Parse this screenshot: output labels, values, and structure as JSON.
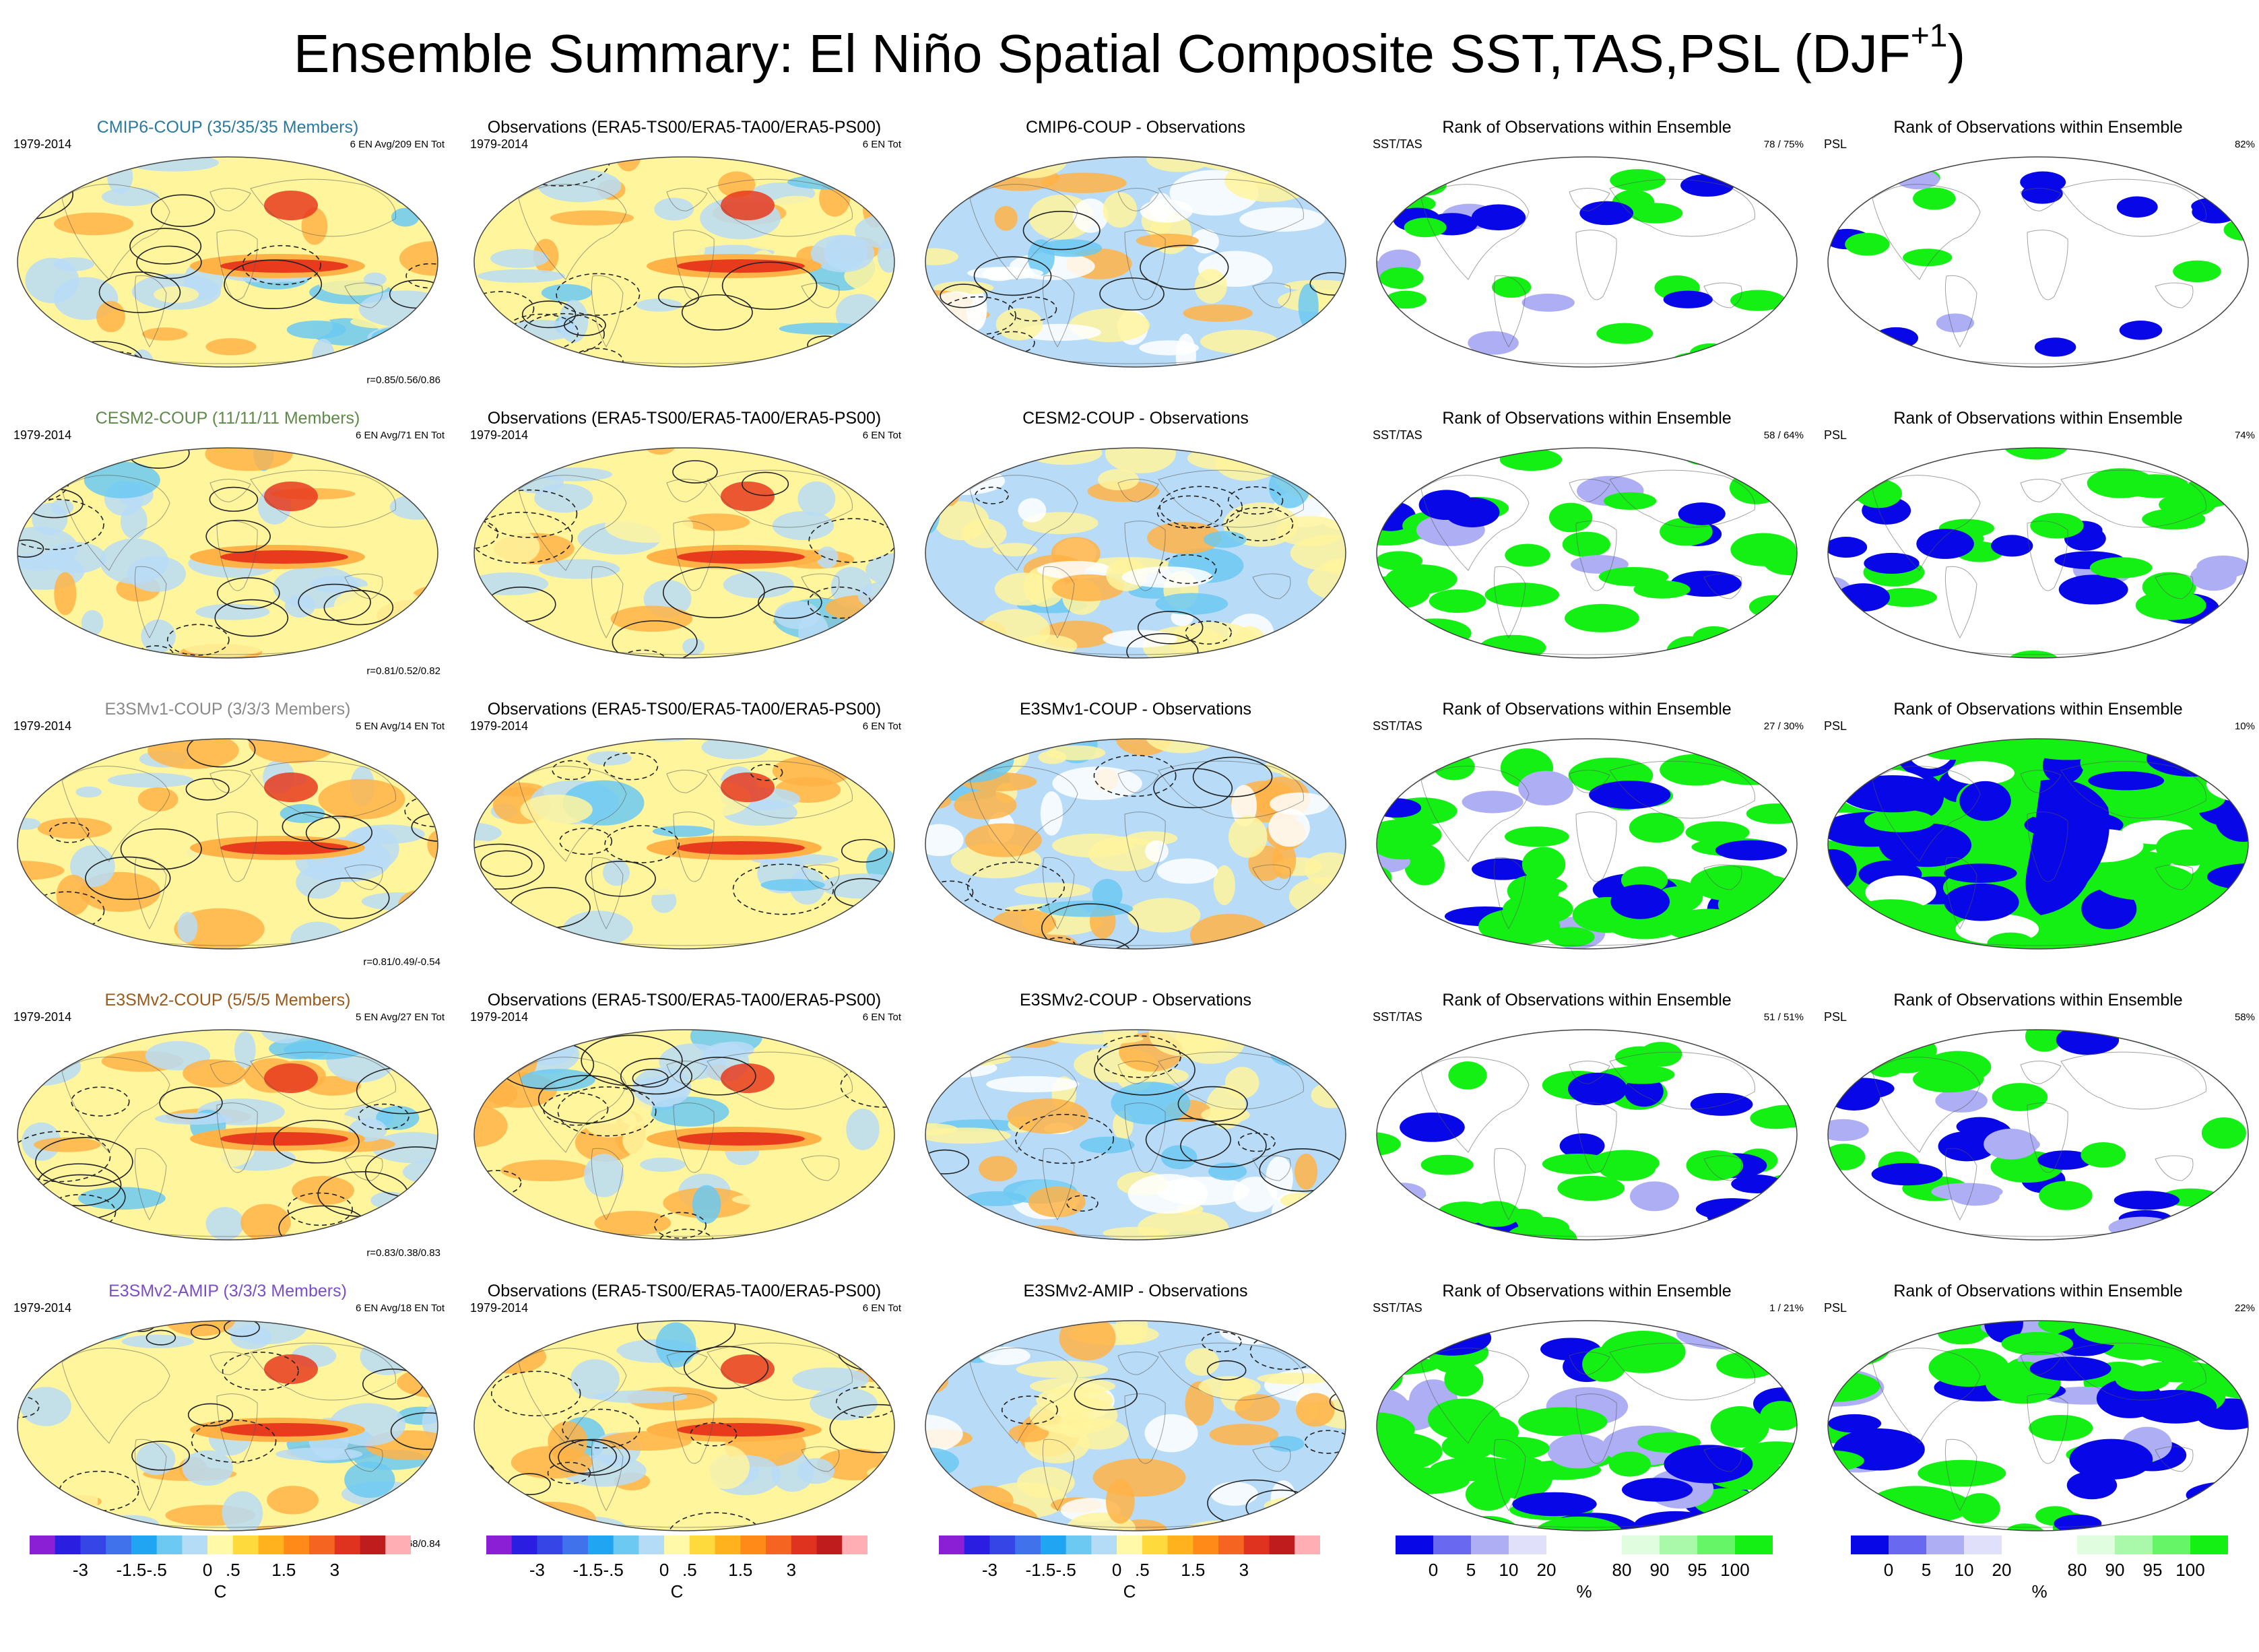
{
  "figure": {
    "title_main": "Ensemble Summary: El Niño Spatial Composite SST,TAS,PSL (DJF",
    "title_superscript": "+1",
    "title_end": ")"
  },
  "colors": {
    "sst_scale": [
      "#8b1fd6",
      "#2a1fe0",
      "#3545e6",
      "#3f72eb",
      "#1fa5f2",
      "#6cc9f2",
      "#b5dcf6",
      "#fff9a8",
      "#ffda3d",
      "#ffb21e",
      "#ff8a18",
      "#f56420",
      "#e0331f",
      "#bf1d1d",
      "#ffafb4"
    ],
    "rank_scale": [
      "#0707e8",
      "#6868f0",
      "#aeaef5",
      "#e0e0fa",
      "#ffffff",
      "#ffffff",
      "#e0fde0",
      "#aaf9aa",
      "#66f566",
      "#14f014"
    ],
    "ocean_blue": "#b8dcf7",
    "ocean_yellow": "#fff59d",
    "warm_orange": "#ffb347",
    "warm_red": "#e83b1e",
    "rank_green": "#14f014",
    "rank_blue": "#0707e8",
    "model_title_colors": {
      "cmip6": "#2a7aa0",
      "cesm2": "#5e8a4a",
      "e3smv1": "#8a8a8a",
      "e3smv2coup": "#9a5a1a",
      "e3smv2amip": "#7a4ec8"
    }
  },
  "rows": [
    {
      "model": {
        "title": "CMIP6-COUP (35/35/35 Members)",
        "period": "1979-2014",
        "stat": "6 EN Avg/209 EN Tot",
        "corr": "r=0.85/0.56/0.86",
        "title_color": "#2a7aa0"
      },
      "obs": {
        "title": "Observations (ERA5-TS00/ERA5-TA00/ERA5-PS00)",
        "period": "1979-2014",
        "stat": "6 EN Tot"
      },
      "diff": {
        "title": "CMIP6-COUP - Observations"
      },
      "rank_sst": {
        "title": "Rank of Observations within Ensemble",
        "label": "SST/TAS",
        "stat": "78 /  75%"
      },
      "rank_psl": {
        "title": "Rank of Observations within Ensemble",
        "label": "PSL",
        "stat": "82%"
      }
    },
    {
      "model": {
        "title": "CESM2-COUP (11/11/11 Members)",
        "period": "1979-2014",
        "stat": "6 EN Avg/71 EN Tot",
        "corr": "r=0.81/0.52/0.82",
        "title_color": "#5e8a4a"
      },
      "obs": {
        "title": "Observations (ERA5-TS00/ERA5-TA00/ERA5-PS00)",
        "period": "1979-2014",
        "stat": "6 EN Tot"
      },
      "diff": {
        "title": "CESM2-COUP - Observations"
      },
      "rank_sst": {
        "title": "Rank of Observations within Ensemble",
        "label": "SST/TAS",
        "stat": "58 /  64%"
      },
      "rank_psl": {
        "title": "Rank of Observations within Ensemble",
        "label": "PSL",
        "stat": "74%"
      }
    },
    {
      "model": {
        "title": "E3SMv1-COUP (3/3/3 Members)",
        "period": "1979-2014",
        "stat": "5 EN Avg/14 EN Tot",
        "corr": "r=0.81/0.49/-0.54",
        "title_color": "#8a8a8a"
      },
      "obs": {
        "title": "Observations (ERA5-TS00/ERA5-TA00/ERA5-PS00)",
        "period": "1979-2014",
        "stat": "6 EN Tot"
      },
      "diff": {
        "title": "E3SMv1-COUP - Observations"
      },
      "rank_sst": {
        "title": "Rank of Observations within Ensemble",
        "label": "SST/TAS",
        "stat": "27 /  30%"
      },
      "rank_psl": {
        "title": "Rank of Observations within Ensemble",
        "label": "PSL",
        "stat": "10%"
      }
    },
    {
      "model": {
        "title": "E3SMv2-COUP (5/5/5 Members)",
        "period": "1979-2014",
        "stat": "5 EN Avg/27 EN Tot",
        "corr": "r=0.83/0.38/0.83",
        "title_color": "#9a5a1a"
      },
      "obs": {
        "title": "Observations (ERA5-TS00/ERA5-TA00/ERA5-PS00)",
        "period": "1979-2014",
        "stat": "6 EN Tot"
      },
      "diff": {
        "title": "E3SMv2-COUP - Observations"
      },
      "rank_sst": {
        "title": "Rank of Observations within Ensemble",
        "label": "SST/TAS",
        "stat": "51 /  51%"
      },
      "rank_psl": {
        "title": "Rank of Observations within Ensemble",
        "label": "PSL",
        "stat": "58%"
      }
    },
    {
      "model": {
        "title": "E3SMv2-AMIP (3/3/3 Members)",
        "period": "1979-2014",
        "stat": "6 EN Avg/18 EN Tot",
        "corr": "r=0.93/0.68/0.84",
        "title_color": "#7a4ec8"
      },
      "obs": {
        "title": "Observations (ERA5-TS00/ERA5-TA00/ERA5-PS00)",
        "period": "1979-2014",
        "stat": "6 EN Tot"
      },
      "diff": {
        "title": "E3SMv2-AMIP - Observations"
      },
      "rank_sst": {
        "title": "Rank of Observations within Ensemble",
        "label": "SST/TAS",
        "stat": "1 /  21%"
      },
      "rank_psl": {
        "title": "Rank of Observations within Ensemble",
        "label": "PSL",
        "stat": "22%"
      }
    }
  ],
  "colorbars": {
    "sst": {
      "ticks": [
        "-3",
        "-1.5",
        "-.5",
        "0",
        ".5",
        "1.5",
        "3"
      ],
      "unit": "C"
    },
    "rank": {
      "ticks": [
        "0",
        "5",
        "10",
        "20",
        "80",
        "90",
        "95",
        "100"
      ],
      "unit": "%"
    }
  }
}
